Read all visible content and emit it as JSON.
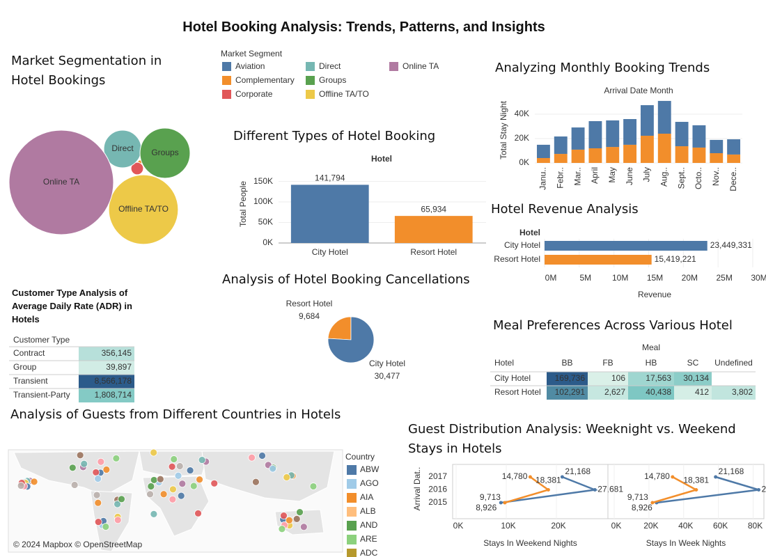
{
  "title": "Hotel Booking Analysis: Trends, Patterns, and Insights",
  "chart_data": [
    {
      "type": "bubble",
      "title": "Market Segmentation in Hotel Bookings",
      "legend_title": "Market Segment",
      "categories": [
        "Aviation",
        "Complementary",
        "Corporate",
        "Direct",
        "Groups",
        "Offline TA/TO",
        "Online TA"
      ],
      "values": [
        40,
        100,
        800,
        7300,
        13000,
        25000,
        56500
      ],
      "colors": [
        "#4e79a7",
        "#f28e2b",
        "#e15759",
        "#76b7b2",
        "#59a14f",
        "#edc948",
        "#b07aa1"
      ]
    },
    {
      "type": "bar",
      "title": "Different Types of Hotel Booking",
      "header": "Hotel",
      "y_label": "Total People",
      "categories": [
        "City Hotel",
        "Resort Hotel"
      ],
      "values": [
        141794,
        65934
      ],
      "value_labels": [
        "141,794",
        "65,934"
      ],
      "colors": [
        "#4e79a7",
        "#f28e2b"
      ],
      "ylim": [
        0,
        190000
      ],
      "yticks": [
        {
          "value": 0,
          "label": "0K"
        },
        {
          "value": 50000,
          "label": "50K"
        },
        {
          "value": 100000,
          "label": "100K"
        },
        {
          "value": 150000,
          "label": "150K"
        }
      ],
      "grid": true
    },
    {
      "type": "stacked-bar",
      "title": "Analyzing Monthly Booking Trends",
      "header": "Arrival Date Month",
      "y_label": "Total Stay Night",
      "categories": [
        "Janu..",
        "Febr..",
        "Mar..",
        "April",
        "May",
        "June",
        "July",
        "Aug..",
        "Sept..",
        "Octo..",
        "Nov..",
        "Dece.."
      ],
      "series": [
        {
          "color": "#f28e2b",
          "values": [
            4000,
            7400,
            10900,
            12000,
            13100,
            14900,
            22300,
            24000,
            13700,
            12600,
            8000,
            6900
          ]
        },
        {
          "color": "#4e79a7",
          "values": [
            10900,
            14300,
            18200,
            22300,
            21800,
            21100,
            25100,
            26900,
            20000,
            18300,
            10900,
            12500
          ]
        }
      ],
      "ylim": [
        0,
        54000
      ],
      "yticks": [
        {
          "value": 0,
          "label": "0K"
        },
        {
          "value": 20000,
          "label": "20K"
        },
        {
          "value": 40000,
          "label": "40K"
        }
      ],
      "grid": true
    },
    {
      "type": "hbar",
      "title": "Hotel Revenue Analysis",
      "header": "Hotel",
      "x_label": "Revenue",
      "categories": [
        "City Hotel",
        "Resort Hotel"
      ],
      "values": [
        23449331,
        15419221
      ],
      "value_labels": [
        "23,449,331",
        "15,419,221"
      ],
      "colors": [
        "#4e79a7",
        "#f28e2b"
      ],
      "xlim": [
        0,
        30000000
      ],
      "xticks": [
        {
          "value": 0,
          "label": "0M"
        },
        {
          "value": 5000000,
          "label": "5M"
        },
        {
          "value": 10000000,
          "label": "10M"
        },
        {
          "value": 15000000,
          "label": "15M"
        },
        {
          "value": 20000000,
          "label": "20M"
        },
        {
          "value": 25000000,
          "label": "25M"
        },
        {
          "value": 30000000,
          "label": "30M"
        }
      ],
      "grid": true
    },
    {
      "type": "pie",
      "title": "Analysis of Hotel Booking Cancellations",
      "categories": [
        "Resort Hotel",
        "City Hotel"
      ],
      "values": [
        9684,
        30477
      ],
      "value_labels": [
        "9,684",
        "30,477"
      ],
      "colors": [
        "#f28e2b",
        "#4e79a7"
      ]
    },
    {
      "type": "highlight-table",
      "title": "Customer Type Analysis of Average Daily Rate (ADR) in Hotels",
      "row_header": "Customer Type",
      "rows": [
        "Contract",
        "Group",
        "Transient",
        "Transient-Party"
      ],
      "values": [
        [
          356145
        ],
        [
          39897
        ],
        [
          8566178
        ],
        [
          1808714
        ]
      ],
      "value_labels": [
        [
          "356,145"
        ],
        [
          "39,897"
        ],
        [
          "8,566,178"
        ],
        [
          "1,808,714"
        ]
      ]
    },
    {
      "type": "highlight-table",
      "title": "Meal Preferences Across Various Hotel",
      "column_header": "Meal",
      "row_header": "Hotel",
      "columns": [
        "BB",
        "FB",
        "HB",
        "SC",
        "Undefined"
      ],
      "rows": [
        "City Hotel",
        "Resort Hotel"
      ],
      "values": [
        [
          169736,
          106,
          17563,
          30134,
          null
        ],
        [
          102291,
          2627,
          40438,
          412,
          3802
        ]
      ],
      "value_labels": [
        [
          "169,736",
          "106",
          "17,563",
          "30,134",
          null
        ],
        [
          "102,291",
          "2,627",
          "40,438",
          "412",
          "3,802"
        ]
      ]
    },
    {
      "type": "map",
      "title": "Analysis of Guests from Different Countries in Hotels",
      "legend_title": "Country",
      "legend": [
        "ABW",
        "AGO",
        "AIA",
        "ALB",
        "AND",
        "ARE",
        "ADC"
      ],
      "colors": [
        "#4e79a7",
        "#a0cbe8",
        "#f28e2b",
        "#ffbe7d",
        "#59a14f",
        "#8cd17d",
        "#b6992d"
      ],
      "attribution": "© 2024 Mapbox © OpenStreetMap"
    },
    {
      "type": "connected-scatter",
      "title": "Guest Distribution Analysis: Weeknight vs. Weekend Stays in Hotels",
      "y_label": "Arrival Dat..",
      "categories": [
        "2015",
        "2016",
        "2017"
      ],
      "panels": [
        {
          "x_label": "Stays In Weekend Nights",
          "xlim": [
            0,
            30000
          ],
          "xticks": [
            {
              "value": 0,
              "label": "0K"
            },
            {
              "value": 10000,
              "label": "10K"
            },
            {
              "value": 20000,
              "label": "20K"
            }
          ],
          "series": [
            {
              "color": "#4e79a7",
              "values": [
                8926,
                27681,
                21168
              ],
              "value_labels": [
                "8,926",
                "27,681",
                "21,168"
              ]
            },
            {
              "color": "#f28e2b",
              "values": [
                9713,
                18381,
                14780
              ],
              "value_labels": [
                "9,713",
                "18,381",
                "14,780"
              ]
            }
          ]
        },
        {
          "x_label": "Stays In Week Nights",
          "xlim": [
            0,
            85000
          ],
          "xticks": [
            {
              "value": 0,
              "label": "0K"
            },
            {
              "value": 20000,
              "label": "20K"
            },
            {
              "value": 40000,
              "label": "40K"
            },
            {
              "value": 60000,
              "label": "60K"
            },
            {
              "value": 80000,
              "label": "80K"
            }
          ],
          "series": [
            {
              "color": "#4e79a7",
              "values": [
                24400,
                83200,
                58400
              ]
            },
            {
              "color": "#f28e2b",
              "values": [
                22000,
                47200,
                33600
              ]
            }
          ]
        }
      ]
    }
  ]
}
